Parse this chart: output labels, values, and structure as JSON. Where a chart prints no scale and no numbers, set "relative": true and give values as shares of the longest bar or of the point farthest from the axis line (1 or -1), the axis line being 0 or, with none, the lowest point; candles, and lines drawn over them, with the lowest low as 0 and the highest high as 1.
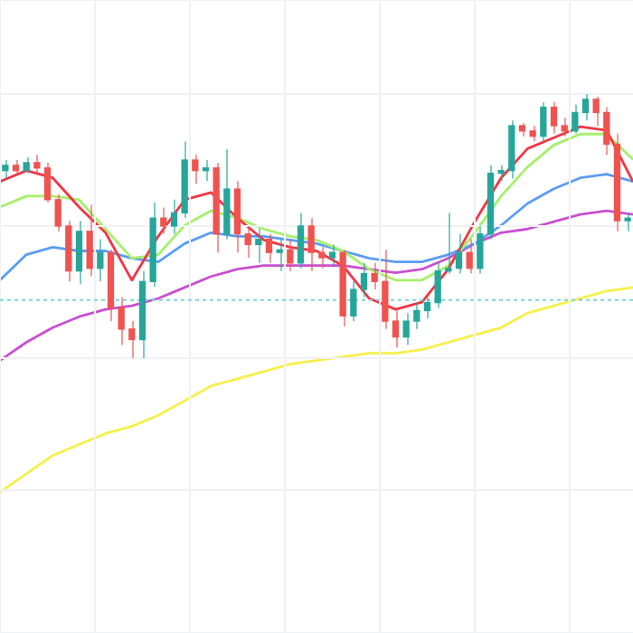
{
  "chart_data": [
    {
      "type": "candlestick",
      "relative": true,
      "grid": true,
      "categories": [
        null,
        null,
        null,
        null,
        null,
        null,
        null,
        null,
        null,
        null,
        null,
        null,
        null,
        null,
        null,
        null,
        null,
        null,
        null,
        null,
        null,
        null,
        null,
        null,
        null,
        null,
        null,
        null,
        null,
        null,
        null,
        null,
        null,
        null,
        null,
        null,
        null,
        null,
        null,
        null,
        null,
        null,
        null,
        null,
        null,
        null,
        null,
        null,
        null,
        null,
        null,
        null,
        null,
        null,
        null,
        null,
        null,
        null,
        null,
        null
      ],
      "ohlc": [
        [
          0.71,
          0.75,
          0.68,
          0.73
        ],
        [
          0.73,
          0.75,
          0.69,
          0.71
        ],
        [
          0.71,
          0.76,
          0.7,
          0.74
        ],
        [
          0.74,
          0.77,
          0.7,
          0.72
        ],
        [
          0.72,
          0.74,
          0.59,
          0.6
        ],
        [
          0.6,
          0.62,
          0.48,
          0.5
        ],
        [
          0.5,
          0.52,
          0.29,
          0.33
        ],
        [
          0.33,
          0.52,
          0.28,
          0.48
        ],
        [
          0.48,
          0.58,
          0.31,
          0.34
        ],
        [
          0.34,
          0.45,
          0.29,
          0.4
        ],
        [
          0.4,
          0.41,
          0.14,
          0.19
        ],
        [
          0.19,
          0.23,
          0.05,
          0.11
        ],
        [
          0.11,
          0.14,
          0,
          0.07
        ],
        [
          0.07,
          0.33,
          0,
          0.29
        ],
        [
          0.29,
          0.59,
          0.27,
          0.53
        ],
        [
          0.53,
          0.57,
          0.47,
          0.5
        ],
        [
          0.5,
          0.6,
          0.47,
          0.55
        ],
        [
          0.55,
          0.82,
          0.53,
          0.75
        ],
        [
          0.75,
          0.77,
          0.66,
          0.71
        ],
        [
          0.71,
          0.75,
          0.67,
          0.72
        ],
        [
          0.72,
          0.74,
          0.4,
          0.47
        ],
        [
          0.47,
          0.79,
          0.45,
          0.64
        ],
        [
          0.64,
          0.67,
          0.4,
          0.47
        ],
        [
          0.47,
          0.5,
          0.38,
          0.43
        ],
        [
          0.43,
          0.49,
          0.36,
          0.45
        ],
        [
          0.45,
          0.47,
          0.36,
          0.4
        ],
        [
          0.4,
          0.45,
          0.33,
          0.41
        ],
        [
          0.41,
          0.45,
          0.33,
          0.36
        ],
        [
          0.36,
          0.55,
          0.34,
          0.5
        ],
        [
          0.5,
          0.53,
          0.33,
          0.4
        ],
        [
          0.4,
          0.42,
          0.34,
          0.38
        ],
        [
          0.38,
          0.43,
          0.35,
          0.4
        ],
        [
          0.4,
          0.41,
          0.12,
          0.16
        ],
        [
          0.16,
          0.29,
          0.14,
          0.26
        ],
        [
          0.26,
          0.36,
          0.23,
          0.32
        ],
        [
          0.32,
          0.36,
          0.26,
          0.29
        ],
        [
          0.29,
          0.41,
          0.11,
          0.14
        ],
        [
          0.14,
          0.18,
          0.04,
          0.08
        ],
        [
          0.08,
          0.17,
          0.05,
          0.14
        ],
        [
          0.14,
          0.21,
          0.11,
          0.18
        ],
        [
          0.18,
          0.23,
          0.15,
          0.21
        ],
        [
          0.21,
          0.36,
          0.19,
          0.33
        ],
        [
          0.33,
          0.55,
          0.32,
          0.34
        ],
        [
          0.34,
          0.47,
          0.32,
          0.4
        ],
        [
          0.4,
          0.45,
          0.32,
          0.34
        ],
        [
          0.34,
          0.5,
          0.32,
          0.47
        ],
        [
          0.47,
          0.73,
          0.45,
          0.7
        ],
        [
          0.7,
          0.73,
          0.67,
          0.71
        ],
        [
          0.71,
          0.9,
          0.68,
          0.88
        ],
        [
          0.88,
          0.89,
          0.84,
          0.86
        ],
        [
          0.86,
          0.88,
          0.82,
          0.84
        ],
        [
          0.84,
          0.97,
          0.82,
          0.95
        ],
        [
          0.95,
          0.97,
          0.85,
          0.88
        ],
        [
          0.88,
          0.91,
          0.84,
          0.86
        ],
        [
          0.86,
          0.96,
          0.85,
          0.93
        ],
        [
          0.93,
          1.0,
          0.9,
          0.98
        ],
        [
          0.98,
          0.99,
          0.88,
          0.93
        ],
        [
          0.93,
          0.95,
          0.77,
          0.81
        ],
        [
          0.81,
          0.85,
          0.48,
          0.52
        ],
        [
          0.52,
          0.55,
          0.48,
          0.53
        ]
      ],
      "ref_lines": [
        {
          "axis": "y",
          "value": 0.22,
          "color": "#7fd3dc",
          "line_style": "dotted"
        }
      ]
    },
    {
      "type": "line",
      "relative": true,
      "marker": "none",
      "categories": [
        null,
        null,
        null,
        null,
        null,
        null,
        null,
        null,
        null,
        null,
        null,
        null,
        null,
        null,
        null,
        null,
        null,
        null,
        null,
        null,
        null,
        null,
        null,
        null,
        null
      ],
      "series": [
        {
          "color": "#f23645",
          "values": [
            0.85,
            0.88,
            0.86,
            0.78,
            0.71,
            0.58,
            0.7,
            0.8,
            0.82,
            0.75,
            0.69,
            0.67,
            0.66,
            0.62,
            0.53,
            0.5,
            0.52,
            0.61,
            0.74,
            0.86,
            0.94,
            0.97,
            1.0,
            0.99,
            0.85
          ]
        },
        {
          "color": "#a5f06a",
          "values": [
            0.78,
            0.81,
            0.81,
            0.8,
            0.72,
            0.64,
            0.65,
            0.73,
            0.77,
            0.75,
            0.72,
            0.7,
            0.69,
            0.66,
            0.61,
            0.58,
            0.58,
            0.62,
            0.71,
            0.81,
            0.89,
            0.95,
            0.98,
            0.98,
            0.91
          ]
        },
        {
          "color": "#5b9cf6",
          "values": [
            0.58,
            0.65,
            0.67,
            0.66,
            0.66,
            0.64,
            0.63,
            0.68,
            0.71,
            0.7,
            0.7,
            0.69,
            0.68,
            0.66,
            0.64,
            0.63,
            0.63,
            0.65,
            0.68,
            0.73,
            0.79,
            0.83,
            0.86,
            0.87,
            0.85
          ]
        },
        {
          "color": "#c94fd0",
          "values": [
            0.36,
            0.41,
            0.45,
            0.48,
            0.5,
            0.51,
            0.53,
            0.56,
            0.59,
            0.61,
            0.62,
            0.62,
            0.62,
            0.62,
            0.61,
            0.6,
            0.61,
            0.64,
            0.68,
            0.71,
            0.72,
            0.74,
            0.76,
            0.77,
            0.76
          ]
        },
        {
          "color": "#f5f04a",
          "values": [
            0,
            0.05,
            0.1,
            0.13,
            0.16,
            0.18,
            0.21,
            0.25,
            0.29,
            0.31,
            0.33,
            0.35,
            0.36,
            0.37,
            0.38,
            0.38,
            0.39,
            0.41,
            0.43,
            0.45,
            0.49,
            0.51,
            0.53,
            0.55,
            0.56
          ]
        }
      ]
    }
  ]
}
